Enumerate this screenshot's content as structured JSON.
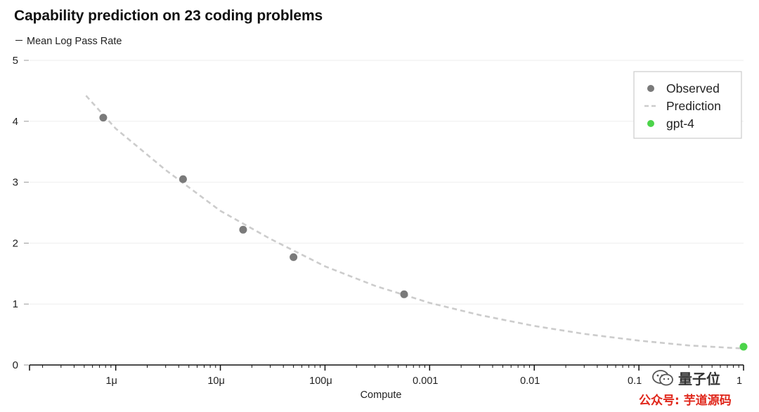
{
  "chart_data": {
    "type": "scatter",
    "title": "Capability prediction on 23 coding problems",
    "ylabel": "Mean Log Pass Rate",
    "xlabel": "Compute",
    "x_scale": "log",
    "xlim": [
      1.5e-07,
      1
    ],
    "ylim": [
      0,
      5
    ],
    "x_ticks": [
      {
        "value": 1e-06,
        "label": "1μ"
      },
      {
        "value": 1e-05,
        "label": "10μ"
      },
      {
        "value": 0.0001,
        "label": "100μ"
      },
      {
        "value": 0.001,
        "label": "0.001"
      },
      {
        "value": 0.01,
        "label": "0.01"
      },
      {
        "value": 0.1,
        "label": "0.1"
      },
      {
        "value": 1,
        "label": "1"
      }
    ],
    "y_ticks": [
      {
        "value": 0,
        "label": "0"
      },
      {
        "value": 1,
        "label": "1"
      },
      {
        "value": 2,
        "label": "2"
      },
      {
        "value": 3,
        "label": "3"
      },
      {
        "value": 4,
        "label": "4"
      },
      {
        "value": 5,
        "label": "5"
      }
    ],
    "grid": "horizontal",
    "legend_position": "top-right",
    "series": [
      {
        "name": "Observed",
        "kind": "scatter",
        "color": "#7a7a7a",
        "points": [
          {
            "x": 7.6e-07,
            "y": 4.06
          },
          {
            "x": 4.4e-06,
            "y": 3.05
          },
          {
            "x": 1.65e-05,
            "y": 2.22
          },
          {
            "x": 5e-05,
            "y": 1.77
          },
          {
            "x": 0.00057,
            "y": 1.16
          }
        ]
      },
      {
        "name": "Prediction",
        "kind": "dashed-line",
        "color": "#cccccc",
        "points": [
          {
            "x": 5.2e-07,
            "y": 4.42
          },
          {
            "x": 1e-06,
            "y": 3.88
          },
          {
            "x": 3e-06,
            "y": 3.2
          },
          {
            "x": 1e-05,
            "y": 2.53
          },
          {
            "x": 3e-05,
            "y": 2.07
          },
          {
            "x": 0.0001,
            "y": 1.62
          },
          {
            "x": 0.0003,
            "y": 1.3
          },
          {
            "x": 0.001,
            "y": 1.02
          },
          {
            "x": 0.003,
            "y": 0.82
          },
          {
            "x": 0.01,
            "y": 0.64
          },
          {
            "x": 0.03,
            "y": 0.51
          },
          {
            "x": 0.1,
            "y": 0.4
          },
          {
            "x": 0.3,
            "y": 0.32
          },
          {
            "x": 1,
            "y": 0.27
          }
        ]
      },
      {
        "name": "gpt-4",
        "kind": "scatter",
        "color": "#4cd44a",
        "points": [
          {
            "x": 1,
            "y": 0.3
          }
        ]
      }
    ]
  },
  "watermark": {
    "name": "量子位",
    "account": "公众号: 芋道源码"
  }
}
